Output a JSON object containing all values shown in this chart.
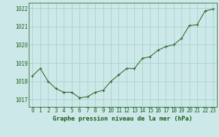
{
  "x": [
    0,
    1,
    2,
    3,
    4,
    5,
    6,
    7,
    8,
    9,
    10,
    11,
    12,
    13,
    14,
    15,
    16,
    17,
    18,
    19,
    20,
    21,
    22,
    23
  ],
  "y": [
    1018.3,
    1018.7,
    1018.0,
    1017.6,
    1017.4,
    1017.4,
    1017.1,
    1017.15,
    1017.4,
    1017.5,
    1018.0,
    1018.35,
    1018.7,
    1018.7,
    1019.25,
    1019.35,
    1019.7,
    1019.9,
    1020.0,
    1020.35,
    1021.05,
    1021.1,
    1021.85,
    1021.95
  ],
  "line_color": "#2d6a2d",
  "marker": "+",
  "marker_size": 3,
  "line_width": 0.8,
  "background_color": "#cce8e8",
  "grid_color": "#aacfcf",
  "xlabel": "Graphe pression niveau de la mer (hPa)",
  "xlabel_fontsize": 6.5,
  "xlabel_color": "#1a5c1a",
  "ytick_labels": [
    "1017",
    "1018",
    "1019",
    "1020",
    "1021",
    "1022"
  ],
  "ylim": [
    1016.6,
    1022.3
  ],
  "xlim": [
    -0.5,
    23.5
  ],
  "xtick_labels": [
    "0",
    "1",
    "2",
    "3",
    "4",
    "5",
    "6",
    "7",
    "8",
    "9",
    "10",
    "11",
    "12",
    "13",
    "14",
    "15",
    "16",
    "17",
    "18",
    "19",
    "20",
    "21",
    "22",
    "23"
  ],
  "tick_color": "#1a5c1a",
  "tick_fontsize": 5.5,
  "spine_color": "#2d6a2d"
}
